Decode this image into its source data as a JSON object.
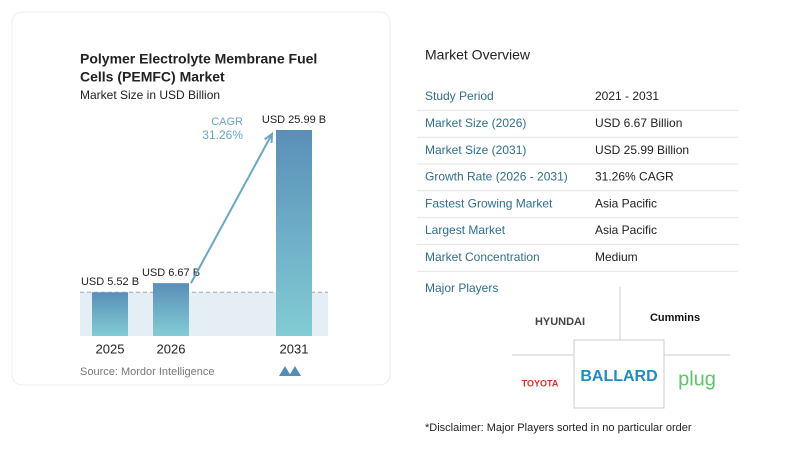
{
  "chart_data": {
    "type": "bar",
    "title": [
      "Polymer Electrolyte Membrane Fuel",
      "Cells (PEMFC) Market"
    ],
    "subtitle": "Market Size in USD Billion",
    "categories": [
      "2025",
      "2026",
      "2031"
    ],
    "values": [
      5.52,
      6.67,
      25.99
    ],
    "value_labels": [
      "USD 5.52 B",
      "USD 6.67 B",
      "USD 25.99 B"
    ],
    "color": "#6fa8c8",
    "cagr_label": "CAGR",
    "cagr_value": "31.26%",
    "source": "Source: Mordor Intelligence"
  },
  "overview": {
    "title": "Market Overview",
    "rows": [
      [
        "Study Period",
        "2021 - 2031"
      ],
      [
        "Market Size (2026)",
        "USD 6.67 Billion"
      ],
      [
        "Market Size (2031)",
        "USD 25.99 Billion"
      ],
      [
        "Growth Rate (2026 - 2031)",
        "31.26% CAGR"
      ],
      [
        "Fastest Growing Market",
        "Asia Pacific"
      ],
      [
        "Largest Market",
        "Asia Pacific"
      ],
      [
        "Market Concentration",
        "Medium"
      ]
    ]
  },
  "players": {
    "title": "Major Players",
    "names": [
      "HYUNDAI",
      "Cummins",
      "TOYOTA",
      "BALLARD",
      "plug"
    ],
    "disclaimer": "*Disclaimer: Major Players sorted in no particular order"
  }
}
